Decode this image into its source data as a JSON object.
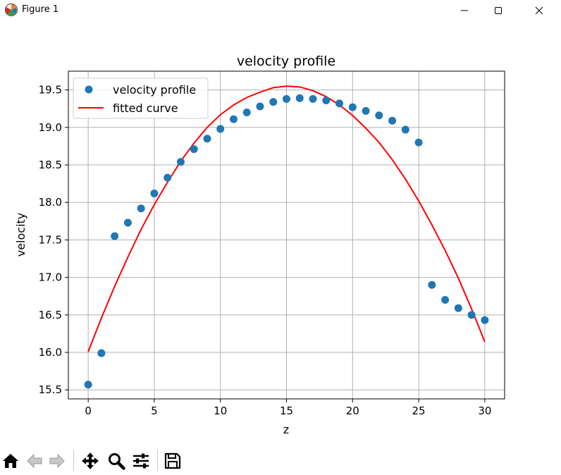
{
  "window": {
    "title": "Figure 1",
    "icons": [
      "matplotlib-icon",
      "minimize-icon",
      "maximize-icon",
      "close-icon"
    ]
  },
  "toolbar": {
    "buttons": [
      "home-icon",
      "back-icon",
      "forward-icon",
      "pan-icon",
      "zoom-icon",
      "configure-subplots-icon",
      "save-icon"
    ]
  },
  "chart_data": {
    "type": "scatter",
    "title": "velocity profile",
    "xlabel": "z",
    "ylabel": "velocity",
    "xlim": [
      -1.5,
      31.5
    ],
    "ylim": [
      15.38,
      19.75
    ],
    "xticks": [
      0,
      5,
      10,
      15,
      20,
      25,
      30
    ],
    "yticks": [
      15.5,
      16.0,
      16.5,
      17.0,
      17.5,
      18.0,
      18.5,
      19.0,
      19.5
    ],
    "grid": true,
    "legend_position": "upper-left",
    "colors": {
      "scatter": "#1f77b4",
      "line": "#ff0000",
      "grid": "#b0b0b0"
    },
    "series": [
      {
        "name": "velocity profile",
        "kind": "scatter",
        "x": [
          0,
          1,
          2,
          3,
          4,
          5,
          6,
          7,
          8,
          9,
          10,
          11,
          12,
          13,
          14,
          15,
          16,
          17,
          18,
          19,
          20,
          21,
          22,
          23,
          24,
          25,
          26,
          27,
          28,
          29,
          30
        ],
        "y": [
          15.57,
          15.99,
          17.55,
          17.73,
          17.92,
          18.12,
          18.33,
          18.54,
          18.71,
          18.85,
          18.98,
          19.11,
          19.2,
          19.28,
          19.34,
          19.38,
          19.39,
          19.38,
          19.36,
          19.32,
          19.27,
          19.22,
          19.16,
          19.09,
          18.97,
          18.8,
          16.9,
          16.7,
          16.59,
          16.5,
          16.43
        ]
      },
      {
        "name": "fitted curve",
        "kind": "line",
        "x": [
          0,
          1,
          2,
          3,
          4,
          5,
          6,
          7,
          8,
          9,
          10,
          11,
          12,
          13,
          14,
          15,
          16,
          17,
          18,
          19,
          20,
          21,
          22,
          23,
          24,
          25,
          26,
          27,
          28,
          29,
          30
        ],
        "y": [
          16.01,
          16.46,
          16.88,
          17.27,
          17.64,
          17.97,
          18.27,
          18.55,
          18.79,
          19.0,
          19.17,
          19.3,
          19.4,
          19.47,
          19.53,
          19.55,
          19.54,
          19.49,
          19.41,
          19.3,
          19.16,
          18.99,
          18.8,
          18.57,
          18.31,
          18.02,
          17.7,
          17.36,
          16.99,
          16.58,
          16.14
        ]
      }
    ]
  }
}
